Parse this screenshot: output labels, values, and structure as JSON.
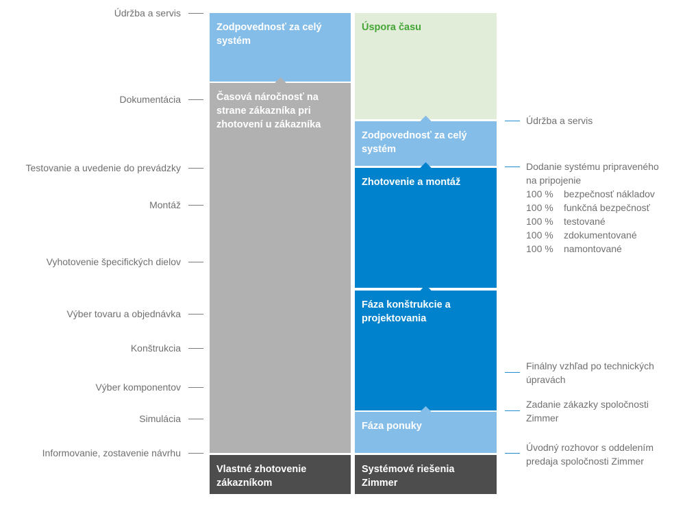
{
  "colors": {
    "light_blue": "#85bde9",
    "gray": "#b1b1b1",
    "dark_gray": "#4d4d4d",
    "light_green": "#e1edd9",
    "blue": "#0082cc",
    "green_text": "#46a537",
    "label_gray": "#6f6f6f"
  },
  "left_labels": [
    "Údržba a servis",
    "Dokumentácia",
    "Testovanie a uvedenie do prevádzky",
    "Montáž",
    "Vyhotovenie špecifických dielov",
    "Výber tovaru a objednávka",
    "Konštrukcia",
    "Výber komponentov",
    "Simulácia",
    "Informovanie, zostavenie návrhu"
  ],
  "left_column": {
    "responsibility": "Zodpovednosť za celý systém",
    "time_effort": "Časová náročnosť na strane zákazníka pri zhotovení u zákazníka",
    "own_build": "Vlastné zhotovenie zákazníkom"
  },
  "right_column": {
    "time_saving": "Úspora času",
    "responsibility": "Zodpovednosť za celý systém",
    "assembly": "Zhotovenie a montáž",
    "design_phase": "Fáza konštrukcie a projektovania",
    "offer_phase": "Fáza ponuky",
    "system_solutions": "Systémové riešenia Zimmer"
  },
  "right_labels": {
    "maintenance": "Údržba a servis",
    "delivery_line1": "Dodanie systému pripraveného",
    "delivery_line2": "na pripojenie",
    "guarantees": [
      {
        "pct": "100 %",
        "text": "bezpečnosť nákladov"
      },
      {
        "pct": "100 %",
        "text": "funkčná bezpečnosť"
      },
      {
        "pct": "100 %",
        "text": "testované"
      },
      {
        "pct": "100 %",
        "text": "zdokumentované"
      },
      {
        "pct": "100 %",
        "text": "namontované"
      }
    ],
    "final_look_line1": "Finálny vzhľad po technických",
    "final_look_line2": "úpravách",
    "order_line1": "Zadanie zákazky spoločnosti",
    "order_line2": "Zimmer",
    "intro_line1": "Úvodný rozhovor s oddelením",
    "intro_line2": "predaja spoločnosti Zimmer"
  }
}
